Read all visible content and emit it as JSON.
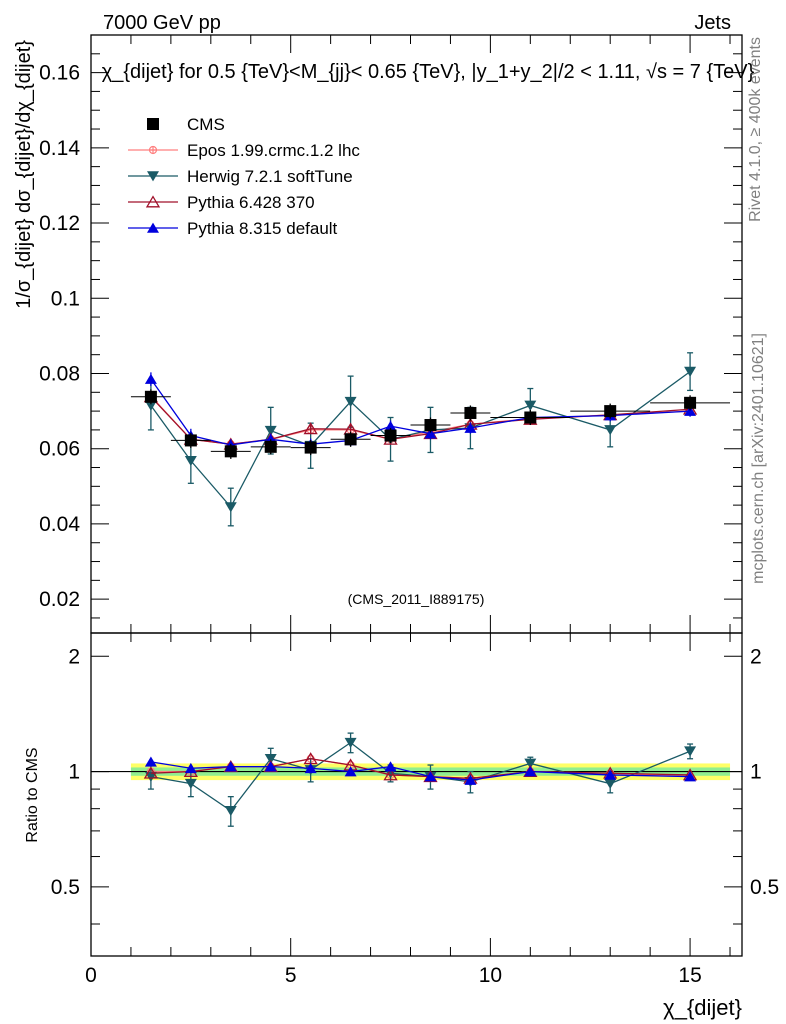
{
  "header": {
    "left": "7000 GeV pp",
    "right": "Jets"
  },
  "side": {
    "top": "Rivet 4.1.0, ≥ 400k events",
    "bottom": "mcplots.cern.ch [arXiv:2401.10621]"
  },
  "colors": {
    "cms": "#000000",
    "epos": "#ff7f7f",
    "herwig": "#1a5a66",
    "pythia6": "#a0102a",
    "pythia8": "#0000dd",
    "band_inner": "#90ee90",
    "band_outer": "#ffff66"
  },
  "chart_data": {
    "type": "line",
    "title": "χ_{dijet} for 0.5 {TeV}<M_{jj}< 0.65 {TeV}, |y_1+y_2|/2 < 1.11, √s = 7 {TeV}",
    "annotation": "(CMS_2011_I889175)",
    "xlabel": "χ_{dijet}",
    "ylabel": "1/σ_{dijet} dσ_{dijet}/dχ_{dijet}",
    "xlim": [
      0,
      16.3
    ],
    "ylim": [
      0.011,
      0.17
    ],
    "xticks": [
      0,
      5,
      10,
      15
    ],
    "yticks": [
      0.02,
      0.04,
      0.06,
      0.08,
      0.1,
      0.12,
      0.14,
      0.16
    ],
    "ytick_labels": [
      "0.02",
      "0.04",
      "0.06",
      "0.08",
      "0.1",
      "0.12",
      "0.14",
      "0.16"
    ],
    "x": [
      1.5,
      2.5,
      3.5,
      4.5,
      5.5,
      6.5,
      7.5,
      8.5,
      9.5,
      11,
      13,
      15
    ],
    "bin_edges": [
      1,
      2,
      3,
      4,
      5,
      6,
      7,
      8,
      9,
      10,
      12,
      14,
      16
    ],
    "series": [
      {
        "name": "CMS",
        "key": "cms",
        "marker": "square",
        "values": [
          0.0738,
          0.0622,
          0.0593,
          0.0605,
          0.0603,
          0.0625,
          0.0635,
          0.0663,
          0.0695,
          0.0683,
          0.07,
          0.0722
        ],
        "errors": [
          0.002,
          0.002,
          0.002,
          0.002,
          0.002,
          0.002,
          0.002,
          0.002,
          0.002,
          0.002,
          0.002,
          0.002
        ]
      },
      {
        "name": "Epos 1.99.crmc.1.2 lhc",
        "key": "epos",
        "marker": "cross",
        "values": [
          0.074,
          0.0625,
          0.0612,
          0.0625,
          0.065,
          0.065,
          0.0625,
          0.0645,
          0.0665,
          0.068,
          0.069,
          0.07
        ],
        "errors": [
          0.001,
          0.001,
          0.001,
          0.001,
          0.001,
          0.001,
          0.001,
          0.001,
          0.001,
          0.001,
          0.001,
          0.001
        ]
      },
      {
        "name": "Herwig 7.2.1 softTune",
        "key": "herwig",
        "marker": "tri-down",
        "values": [
          0.0715,
          0.0568,
          0.0445,
          0.0648,
          0.0608,
          0.0725,
          0.0625,
          0.065,
          0.0655,
          0.0715,
          0.065,
          0.0805
        ],
        "errors": [
          0.0065,
          0.006,
          0.005,
          0.0062,
          0.006,
          0.0068,
          0.0058,
          0.006,
          0.0055,
          0.0045,
          0.0045,
          0.005
        ]
      },
      {
        "name": "Pythia 6.428 370",
        "key": "pythia6",
        "marker": "tri-up-open",
        "values": [
          0.0738,
          0.0625,
          0.0612,
          0.0625,
          0.0653,
          0.0652,
          0.0625,
          0.064,
          0.0665,
          0.0678,
          0.069,
          0.0705
        ],
        "errors": [
          0.0012,
          0.0012,
          0.0012,
          0.0012,
          0.0012,
          0.0012,
          0.0012,
          0.0012,
          0.0012,
          0.0012,
          0.0012,
          0.0012
        ]
      },
      {
        "name": "Pythia 8.315 default",
        "key": "pythia8",
        "marker": "tri-up",
        "values": [
          0.0785,
          0.0635,
          0.061,
          0.0625,
          0.0612,
          0.0622,
          0.066,
          0.064,
          0.0655,
          0.0683,
          0.0688,
          0.07
        ],
        "errors": [
          0.0018,
          0.0018,
          0.0015,
          0.0015,
          0.0015,
          0.0015,
          0.0015,
          0.0015,
          0.0015,
          0.0015,
          0.0015,
          0.0015
        ]
      }
    ],
    "ratio": {
      "ylabel": "Ratio to CMS",
      "ylim": [
        0.33,
        2.3
      ],
      "yticks": [
        0.5,
        1,
        2
      ],
      "ytick_labels": [
        "0.5",
        "1",
        "2"
      ],
      "band_inner": 0.025,
      "band_outer": 0.05,
      "series": [
        {
          "key": "epos",
          "values": [
            1.0,
            1.0,
            1.03,
            1.03,
            1.08,
            1.04,
            0.98,
            0.97,
            0.96,
            1.0,
            0.99,
            0.97
          ]
        },
        {
          "key": "herwig",
          "values": [
            0.97,
            0.93,
            0.79,
            1.08,
            1.01,
            1.19,
            0.99,
            0.97,
            0.94,
            1.05,
            0.93,
            1.13
          ],
          "errors": [
            0.07,
            0.07,
            0.07,
            0.07,
            0.07,
            0.07,
            0.05,
            0.07,
            0.06,
            0.04,
            0.05,
            0.05
          ]
        },
        {
          "key": "pythia6",
          "values": [
            0.99,
            1.0,
            1.03,
            1.03,
            1.08,
            1.04,
            0.98,
            0.97,
            0.96,
            1.0,
            0.99,
            0.98
          ]
        },
        {
          "key": "pythia8",
          "values": [
            1.06,
            1.02,
            1.03,
            1.03,
            1.02,
            1.0,
            1.03,
            0.97,
            0.95,
            1.0,
            0.98,
            0.97
          ]
        }
      ]
    }
  }
}
